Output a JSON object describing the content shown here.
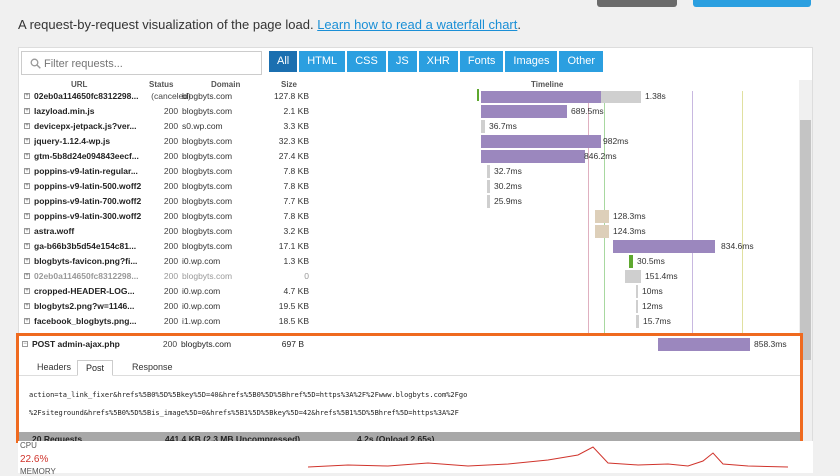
{
  "top_buttons": {
    "dark_color": "#6b6b6b",
    "blue_color": "#2b9fe0"
  },
  "intro": {
    "text": "A request-by-request visualization of the page load.",
    "link": "Learn how to read a waterfall chart"
  },
  "search": {
    "placeholder": "Filter requests..."
  },
  "filters": [
    "All",
    "HTML",
    "CSS",
    "JS",
    "XHR",
    "Fonts",
    "Images",
    "Other"
  ],
  "columns": {
    "url": "URL",
    "status": "Status",
    "domain": "Domain",
    "size": "Size",
    "timeline": "Timeline"
  },
  "rows": [
    {
      "url": "02eb0a114650fc8312298...",
      "status": "(canceled)",
      "domain": "blogbyts.com",
      "size": "127.8 KB",
      "time": "1.38s",
      "dim": false
    },
    {
      "url": "lazyload.min.js",
      "status": "200",
      "domain": "blogbyts.com",
      "size": "2.1 KB",
      "time": "689.5ms",
      "dim": false
    },
    {
      "url": "devicepx-jetpack.js?ver...",
      "status": "200",
      "domain": "s0.wp.com",
      "size": "3.3 KB",
      "time": "36.7ms",
      "dim": false
    },
    {
      "url": "jquery-1.12.4-wp.js",
      "status": "200",
      "domain": "blogbyts.com",
      "size": "32.3 KB",
      "time": "982ms",
      "dim": false
    },
    {
      "url": "gtm-5b8d24e094843eecf...",
      "status": "200",
      "domain": "blogbyts.com",
      "size": "27.4 KB",
      "time": "846.2ms",
      "dim": false
    },
    {
      "url": "poppins-v9-latin-regular...",
      "status": "200",
      "domain": "blogbyts.com",
      "size": "7.8 KB",
      "time": "32.7ms",
      "dim": false
    },
    {
      "url": "poppins-v9-latin-500.woff2",
      "status": "200",
      "domain": "blogbyts.com",
      "size": "7.8 KB",
      "time": "30.2ms",
      "dim": false
    },
    {
      "url": "poppins-v9-latin-700.woff2",
      "status": "200",
      "domain": "blogbyts.com",
      "size": "7.7 KB",
      "time": "25.9ms",
      "dim": false
    },
    {
      "url": "poppins-v9-latin-300.woff2",
      "status": "200",
      "domain": "blogbyts.com",
      "size": "7.8 KB",
      "time": "128.3ms",
      "dim": false
    },
    {
      "url": "astra.woff",
      "status": "200",
      "domain": "blogbyts.com",
      "size": "3.2 KB",
      "time": "124.3ms",
      "dim": false
    },
    {
      "url": "ga-b66b3b5d54e154c81...",
      "status": "200",
      "domain": "blogbyts.com",
      "size": "17.1 KB",
      "time": "834.6ms",
      "dim": false
    },
    {
      "url": "blogbyts-favicon.png?fi...",
      "status": "200",
      "domain": "i0.wp.com",
      "size": "1.3 KB",
      "time": "30.5ms",
      "dim": false
    },
    {
      "url": "02eb0a114650fc8312298...",
      "status": "200",
      "domain": "blogbyts.com",
      "size": "0",
      "time": "151.4ms",
      "dim": true
    },
    {
      "url": "cropped-HEADER-LOG...",
      "status": "200",
      "domain": "i0.wp.com",
      "size": "4.7 KB",
      "time": "10ms",
      "dim": false
    },
    {
      "url": "blogbyts2.png?w=1146...",
      "status": "200",
      "domain": "i0.wp.com",
      "size": "19.5 KB",
      "time": "12ms",
      "dim": false
    },
    {
      "url": "facebook_blogbyts.png...",
      "status": "200",
      "domain": "i1.wp.com",
      "size": "18.5 KB",
      "time": "15.7ms",
      "dim": false
    }
  ],
  "selected_request": {
    "url": "POST admin-ajax.php",
    "status": "200",
    "domain": "blogbyts.com",
    "size": "697 B",
    "time": "858.3ms"
  },
  "detail_tabs": [
    "Headers",
    "Post",
    "Response"
  ],
  "detail_active_tab": "Post",
  "post_body": [
    "action=ta_link_fixer&hrefs%5B0%5D%5Bkey%5D=40&hrefs%5B0%5D%5Bhref%5D=https%3A%2F%2Fwww.blogbyts.com%2Fgo",
    "%2Fsiteground&hrefs%5B0%5D%5Bis_image%5D=0&hrefs%5B1%5D%5Bkey%5D=42&hrefs%5B1%5D%5Bhref%5D=https%3A%2F"
  ],
  "summary": {
    "requests": "20 Requests",
    "size": "441.4 KB (2.3 MB Uncompressed)",
    "time": "4.2s (Onload 2.65s)"
  },
  "cpu": {
    "label": "CPU",
    "value": "22.6%",
    "memory_label": "MEMORY"
  },
  "colors": {
    "highlight_border": "#ef6a1f",
    "bar_purple": "#9b87be",
    "bar_gray": "#cfcfcf",
    "bar_tan": "#ddcfb9",
    "cpu_line": "#d0342c",
    "accent": "#2b9fe0"
  }
}
